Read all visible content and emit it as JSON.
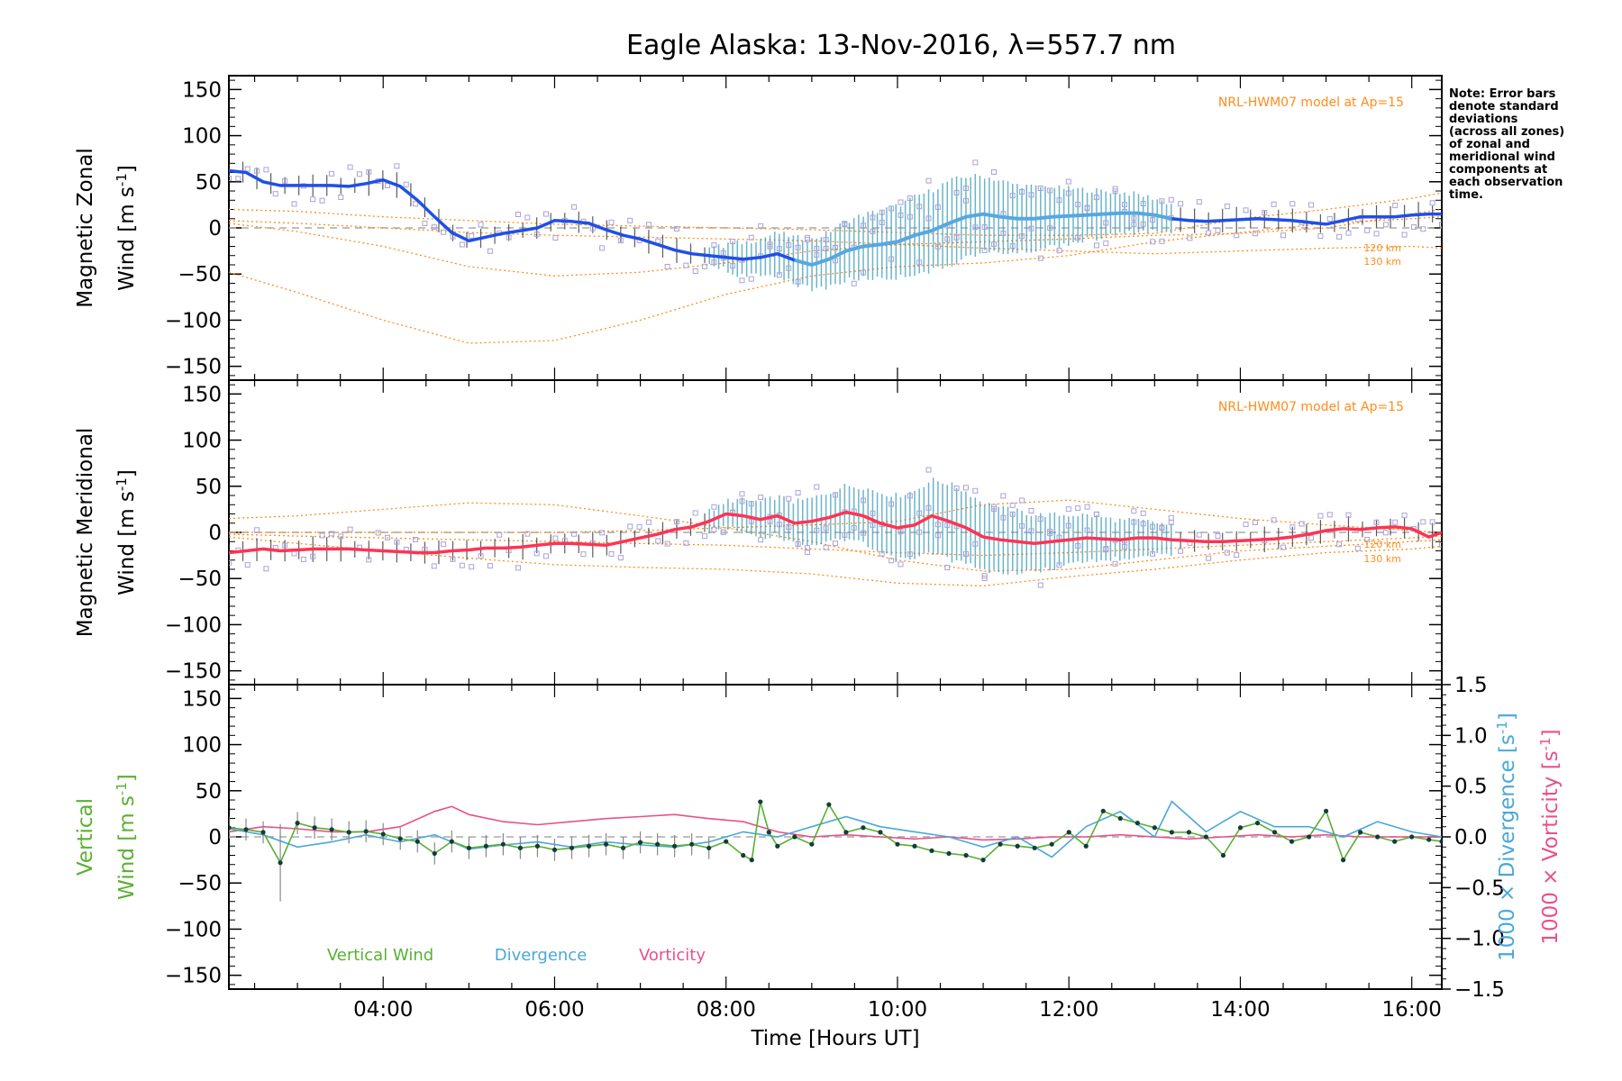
{
  "chart_data": [
    {
      "type": "line",
      "title": "Eagle Alaska: 13-Nov-2016, λ=557.7 nm",
      "ylabel_line1": "Magnetic Zonal",
      "ylabel_line2": "Wind [m s",
      "ylabel_sup": "-1",
      "ylabel_close": "]",
      "ylim": [
        -165,
        165
      ],
      "yticks": [
        "150",
        "100",
        "50",
        "0",
        "−50",
        "−100",
        "−150"
      ],
      "model_label": "NRL-HWM07 model at Ap=15",
      "km_labels": [
        "120 km",
        "130 km"
      ],
      "note": [
        "Note: Error bars",
        "denote standard",
        "deviations",
        "(across all zones)",
        "of zonal and",
        "meridional wind",
        "components at",
        "each observation",
        "time."
      ],
      "series": [
        {
          "x": [
            2.2,
            2.4,
            2.6,
            2.8,
            3.0,
            3.2,
            3.4,
            3.6,
            3.8,
            4.0,
            4.2,
            4.4,
            4.6,
            4.8,
            5.0,
            5.2,
            5.4,
            5.6,
            5.8,
            6.0,
            6.2,
            6.4,
            6.6,
            6.8,
            7.0,
            7.2,
            7.4,
            7.6,
            7.8,
            8.0,
            8.2,
            8.4,
            8.6,
            8.8,
            9.0,
            9.2,
            9.4,
            9.6,
            9.8,
            10.0,
            10.2,
            10.4,
            10.6,
            10.8,
            11.0,
            11.2,
            11.4,
            11.6,
            11.8,
            12.0,
            12.2,
            12.4,
            12.6,
            12.8,
            13.0,
            13.2,
            13.4,
            13.6,
            13.8,
            14.0,
            14.2,
            14.4,
            14.6,
            14.8,
            15.0,
            15.2,
            15.4,
            15.6,
            15.8,
            16.0,
            16.2,
            16.35
          ],
          "values": [
            62,
            60,
            50,
            46,
            46,
            46,
            46,
            45,
            48,
            52,
            45,
            30,
            12,
            -5,
            -14,
            -10,
            -6,
            -3,
            0,
            8,
            7,
            5,
            -2,
            -8,
            -12,
            -18,
            -24,
            -28,
            -30,
            -32,
            -34,
            -32,
            -28,
            -35,
            -40,
            -34,
            -25,
            -20,
            -18,
            -15,
            -8,
            -3,
            5,
            12,
            15,
            12,
            10,
            10,
            12,
            13,
            14,
            15,
            16,
            16,
            14,
            10,
            8,
            7,
            8,
            9,
            10,
            9,
            8,
            6,
            4,
            8,
            12,
            12,
            12,
            14,
            15,
            15
          ]
        }
      ],
      "model_curves": [
        {
          "x": [
            2.2,
            3,
            4,
            5,
            6,
            7,
            8,
            9,
            10,
            11,
            12,
            13,
            14,
            15,
            16,
            16.35
          ],
          "values": [
            5,
            -4,
            -20,
            -42,
            -52,
            -48,
            -38,
            -25,
            -18,
            -15,
            -12,
            -8,
            -6,
            0,
            15,
            20
          ]
        },
        {
          "x": [
            2.2,
            3,
            4,
            5,
            6,
            7,
            8,
            9,
            10,
            11,
            12,
            13,
            14,
            15,
            16,
            16.35
          ],
          "values": [
            -48,
            -70,
            -100,
            -125,
            -122,
            -100,
            -72,
            -52,
            -42,
            -38,
            -30,
            -15,
            -5,
            5,
            10,
            12
          ]
        },
        {
          "x": [
            2.2,
            3,
            4,
            5,
            6,
            7,
            8,
            9,
            10,
            11,
            12,
            13,
            14,
            15,
            16,
            16.35
          ],
          "values": [
            8,
            5,
            0,
            -5,
            -8,
            -10,
            -12,
            -14,
            -18,
            -22,
            -25,
            -28,
            -25,
            -22,
            -20,
            -22
          ]
        },
        {
          "x": [
            2.2,
            3,
            4,
            5,
            6,
            7,
            8,
            9,
            10,
            11,
            12,
            13,
            14,
            15,
            16,
            16.35
          ],
          "values": [
            20,
            18,
            12,
            8,
            4,
            2,
            0,
            -2,
            -5,
            -8,
            -8,
            -6,
            10,
            20,
            32,
            38
          ]
        }
      ]
    },
    {
      "type": "line",
      "ylabel_line1": "Magnetic Meridional",
      "ylabel_line2": "Wind [m s",
      "ylabel_sup": "-1",
      "ylabel_close": "]",
      "ylim": [
        -165,
        165
      ],
      "yticks": [
        "150",
        "100",
        "50",
        "0",
        "−50",
        "−100",
        "−150"
      ],
      "model_label": "NRL-HWM07 model at Ap=15",
      "km_labels": [
        "120 km",
        "130 km"
      ],
      "series": [
        {
          "x": [
            2.2,
            2.4,
            2.6,
            2.8,
            3.0,
            3.2,
            3.4,
            3.6,
            3.8,
            4.0,
            4.2,
            4.4,
            4.6,
            4.8,
            5.0,
            5.2,
            5.4,
            5.6,
            5.8,
            6.0,
            6.2,
            6.4,
            6.6,
            6.8,
            7.0,
            7.2,
            7.4,
            7.6,
            7.8,
            8.0,
            8.2,
            8.4,
            8.6,
            8.8,
            9.0,
            9.2,
            9.4,
            9.6,
            9.8,
            10.0,
            10.2,
            10.4,
            10.6,
            10.8,
            11.0,
            11.2,
            11.4,
            11.6,
            11.8,
            12.0,
            12.2,
            12.4,
            12.6,
            12.8,
            13.0,
            13.2,
            13.4,
            13.6,
            13.8,
            14.0,
            14.2,
            14.4,
            14.6,
            14.8,
            15.0,
            15.2,
            15.4,
            15.6,
            15.8,
            16.0,
            16.2,
            16.35
          ],
          "values": [
            -22,
            -20,
            -18,
            -20,
            -19,
            -18,
            -18,
            -18,
            -19,
            -20,
            -21,
            -22,
            -22,
            -20,
            -19,
            -17,
            -17,
            -16,
            -14,
            -12,
            -12,
            -13,
            -14,
            -10,
            -6,
            -2,
            3,
            6,
            12,
            20,
            18,
            14,
            18,
            10,
            12,
            16,
            22,
            18,
            10,
            5,
            8,
            18,
            12,
            5,
            -5,
            -8,
            -10,
            -12,
            -10,
            -8,
            -6,
            -7,
            -8,
            -6,
            -6,
            -8,
            -9,
            -10,
            -10,
            -9,
            -8,
            -7,
            -5,
            -2,
            2,
            4,
            3,
            5,
            6,
            4,
            -5,
            0
          ]
        }
      ],
      "model_curves": [
        {
          "x": [
            2.2,
            3,
            4,
            5,
            6,
            7,
            8,
            9,
            10,
            11,
            12,
            13,
            14,
            15,
            16,
            16.35
          ],
          "values": [
            15,
            18,
            25,
            32,
            30,
            18,
            5,
            -10,
            -30,
            -42,
            -40,
            -30,
            -20,
            -15,
            -10,
            -8
          ]
        },
        {
          "x": [
            2.2,
            3,
            4,
            5,
            6,
            7,
            8,
            9,
            10,
            11,
            12,
            13,
            14,
            15,
            16,
            16.35
          ],
          "values": [
            -5,
            -12,
            -20,
            -28,
            -35,
            -38,
            -40,
            -45,
            -55,
            -58,
            -48,
            -40,
            -30,
            -22,
            -18,
            -15
          ]
        },
        {
          "x": [
            2.2,
            3,
            4,
            5,
            6,
            7,
            8,
            9,
            10,
            11,
            12,
            13,
            14,
            15,
            16,
            16.35
          ],
          "values": [
            0,
            0,
            0,
            0,
            0,
            2,
            5,
            8,
            12,
            30,
            35,
            25,
            15,
            8,
            2,
            0
          ]
        },
        {
          "x": [
            2.2,
            3,
            4,
            5,
            6,
            7,
            8,
            9,
            10,
            11,
            12,
            13,
            14,
            15,
            16,
            16.35
          ],
          "values": [
            -2,
            -4,
            -6,
            -8,
            -10,
            -12,
            -14,
            -18,
            -22,
            -25,
            -22,
            -18,
            -14,
            -10,
            -6,
            -4
          ]
        }
      ]
    },
    {
      "type": "line",
      "ylabel_line1": "Vertical",
      "ylabel_line2": "Wind [m s",
      "ylabel_sup": "-1",
      "ylabel_close": "]",
      "ylim": [
        -165,
        165
      ],
      "yticks": [
        "150",
        "100",
        "50",
        "0",
        "−50",
        "−100",
        "−150"
      ],
      "xlabel": "Time [Hours UT]",
      "xticks": [
        "04:00",
        "06:00",
        "08:00",
        "10:00",
        "12:00",
        "14:00",
        "16:00"
      ],
      "xlim": [
        2.2,
        16.35
      ],
      "y2ticks": [
        "1.5",
        "1.0",
        "0.5",
        "0.0",
        "−0.5",
        "−1.0",
        "−1.5"
      ],
      "y2label_div": "1000 × Divergence [s",
      "y2label_vort": "1000 × Vorticity [s",
      "y2label_sup": "-1",
      "y2label_close": "]",
      "y2lim": [
        -1.5,
        1.5
      ],
      "legend": [
        "Vertical Wind",
        "Divergence",
        "Vorticity"
      ],
      "series": [
        {
          "name": "Vertical Wind",
          "x": [
            2.2,
            2.4,
            2.6,
            2.8,
            3.0,
            3.2,
            3.4,
            3.6,
            3.8,
            4.0,
            4.2,
            4.4,
            4.6,
            4.8,
            5.0,
            5.2,
            5.4,
            5.6,
            5.8,
            6.0,
            6.2,
            6.4,
            6.6,
            6.8,
            7.0,
            7.2,
            7.4,
            7.6,
            7.8,
            8.0,
            8.2,
            8.3,
            8.4,
            8.5,
            8.6,
            8.8,
            9.0,
            9.2,
            9.4,
            9.6,
            9.8,
            10.0,
            10.2,
            10.4,
            10.6,
            10.8,
            11.0,
            11.2,
            11.4,
            11.6,
            11.8,
            12.0,
            12.2,
            12.4,
            12.6,
            12.8,
            13.0,
            13.2,
            13.4,
            13.6,
            13.8,
            14.0,
            14.2,
            14.4,
            14.6,
            14.8,
            15.0,
            15.2,
            15.4,
            15.6,
            15.8,
            16.0,
            16.2,
            16.35
          ],
          "values": [
            10,
            8,
            5,
            -28,
            15,
            10,
            8,
            5,
            6,
            3,
            -2,
            -5,
            -18,
            -5,
            -12,
            -10,
            -8,
            -12,
            -10,
            -14,
            -12,
            -10,
            -8,
            -12,
            -6,
            -8,
            -10,
            -8,
            -12,
            -5,
            -20,
            -25,
            38,
            5,
            -10,
            0,
            -8,
            35,
            5,
            10,
            5,
            -8,
            -10,
            -15,
            -18,
            -20,
            -25,
            -8,
            -10,
            -12,
            -8,
            5,
            -10,
            28,
            20,
            15,
            10,
            5,
            5,
            0,
            -20,
            10,
            15,
            5,
            -5,
            0,
            28,
            -25,
            5,
            0,
            -5,
            0,
            -3,
            -5
          ]
        },
        {
          "name": "Divergence",
          "x": [
            2.2,
            2.6,
            3.0,
            3.4,
            3.8,
            4.2,
            4.6,
            5.0,
            5.4,
            5.8,
            6.2,
            6.6,
            7.0,
            7.4,
            7.8,
            8.2,
            8.6,
            9.0,
            9.4,
            9.8,
            10.2,
            10.6,
            11.0,
            11.4,
            11.8,
            12.2,
            12.6,
            13.0,
            13.2,
            13.6,
            14.0,
            14.4,
            14.8,
            15.2,
            15.6,
            16.0,
            16.35
          ],
          "values": [
            0.08,
            0.02,
            -0.1,
            -0.05,
            0.02,
            -0.05,
            0.02,
            -0.12,
            -0.08,
            -0.05,
            -0.1,
            -0.05,
            -0.08,
            -0.1,
            -0.05,
            0.05,
            0.0,
            0.1,
            0.2,
            0.1,
            0.05,
            0.0,
            -0.1,
            0.0,
            -0.2,
            0.1,
            0.25,
            0.0,
            0.35,
            0.05,
            0.25,
            0.1,
            0.1,
            0.0,
            0.15,
            0.05,
            0.0
          ]
        },
        {
          "name": "Vorticity",
          "x": [
            2.2,
            2.6,
            3.0,
            3.4,
            3.8,
            4.2,
            4.6,
            4.8,
            5.0,
            5.4,
            5.8,
            6.2,
            6.6,
            7.0,
            7.4,
            7.8,
            8.2,
            8.6,
            9.0,
            9.4,
            9.8,
            10.2,
            10.6,
            11.0,
            11.4,
            11.8,
            12.2,
            12.6,
            13.0,
            13.4,
            13.8,
            14.2,
            14.6,
            15.0,
            15.4,
            15.8,
            16.35
          ],
          "values": [
            0.05,
            0.1,
            0.08,
            0.05,
            0.05,
            0.1,
            0.25,
            0.3,
            0.22,
            0.15,
            0.12,
            0.15,
            0.18,
            0.2,
            0.22,
            0.18,
            0.15,
            0.05,
            0.0,
            0.02,
            0.0,
            -0.02,
            0.0,
            -0.03,
            -0.02,
            0.0,
            0.0,
            0.02,
            0.0,
            -0.02,
            0.0,
            0.02,
            0.0,
            0.02,
            0.0,
            0.0,
            0.0
          ]
        }
      ]
    }
  ]
}
